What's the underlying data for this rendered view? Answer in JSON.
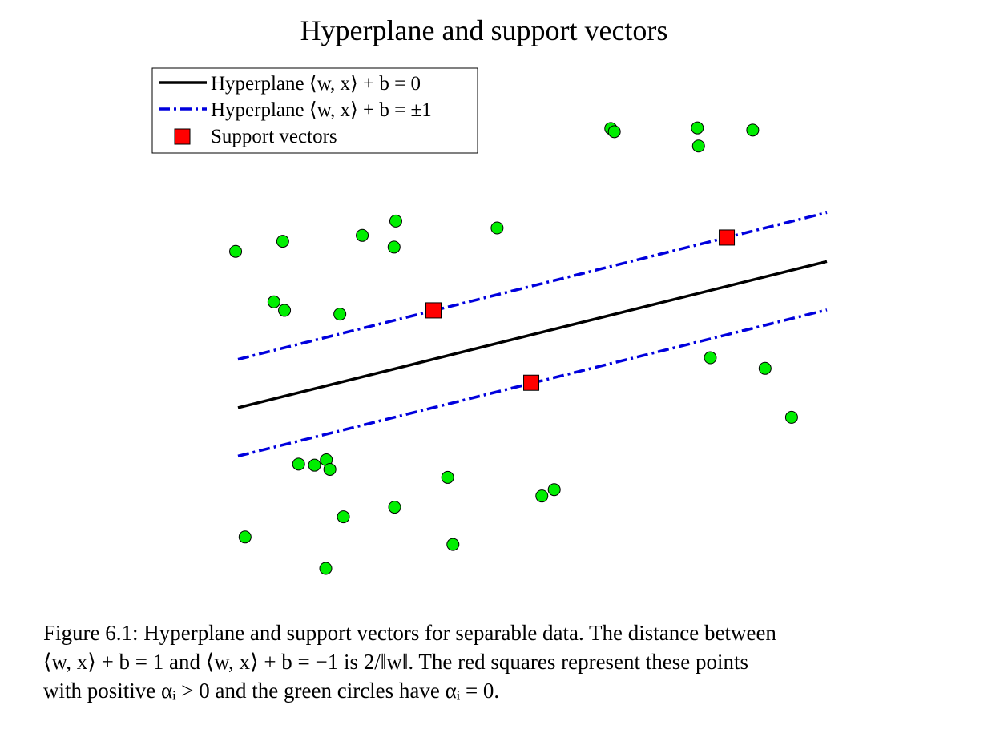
{
  "chart_data": {
    "type": "scatter",
    "title": "Hyperplane and support vectors",
    "xlabel": "",
    "ylabel": "",
    "xlim": [
      0,
      1000
    ],
    "ylim": [
      0,
      1000
    ],
    "grid": false,
    "legend_placement": "top-left",
    "legend": [
      {
        "label": "Hyperplane ⟨w, x⟩ + b = 0",
        "style": "solid",
        "color": "#000000",
        "marker": "line"
      },
      {
        "label": "Hyperplane ⟨w, x⟩ + b = ±1",
        "style": "dashdot",
        "color": "#0000dd",
        "marker": "line"
      },
      {
        "label": "Support vectors",
        "style": "none",
        "color": "#ff0000",
        "marker": "square"
      }
    ],
    "lines": [
      {
        "name": "Hyperplane ⟨w, x⟩ + b = 0",
        "style": "solid",
        "color": "#000000",
        "x": [
          0,
          1000
        ],
        "y": [
          354,
          629
        ]
      },
      {
        "name": "Hyperplane ⟨w, x⟩ + b = +1",
        "style": "dashdot",
        "color": "#0000dd",
        "x": [
          0,
          1000
        ],
        "y": [
          445,
          721
        ]
      },
      {
        "name": "Hyperplane ⟨w, x⟩ + b = -1",
        "style": "dashdot",
        "color": "#0000dd",
        "x": [
          0,
          1000
        ],
        "y": [
          263,
          538
        ]
      }
    ],
    "support_vectors": {
      "color": "#ff0000",
      "marker": "square",
      "x": [
        332,
        498,
        830
      ],
      "y": [
        537,
        401,
        674
      ]
    },
    "points": {
      "color": "#00ee00",
      "marker": "circle",
      "x": [
        -4,
        76,
        61,
        79,
        173,
        211,
        268,
        265,
        440,
        633,
        639,
        782,
        780,
        874,
        895,
        802,
        940,
        103,
        130,
        150,
        156,
        266,
        356,
        537,
        516,
        12,
        179,
        365,
        149
      ],
      "y": [
        648,
        667,
        553,
        537,
        530,
        678,
        705,
        656,
        692,
        879,
        873,
        846,
        880,
        876,
        428,
        448,
        336,
        248,
        246,
        256,
        238,
        167,
        223,
        200,
        188,
        111,
        149,
        97,
        52
      ]
    }
  },
  "caption": {
    "line1": "Figure 6.1: Hyperplane and support vectors for separable data. The distance between",
    "line2": "⟨w, x⟩ + b = 1 and ⟨w, x⟩ + b = −1 is 2/‖w‖. The red squares represent these points",
    "line3": "with positive αᵢ > 0 and the green circles have αᵢ = 0."
  }
}
